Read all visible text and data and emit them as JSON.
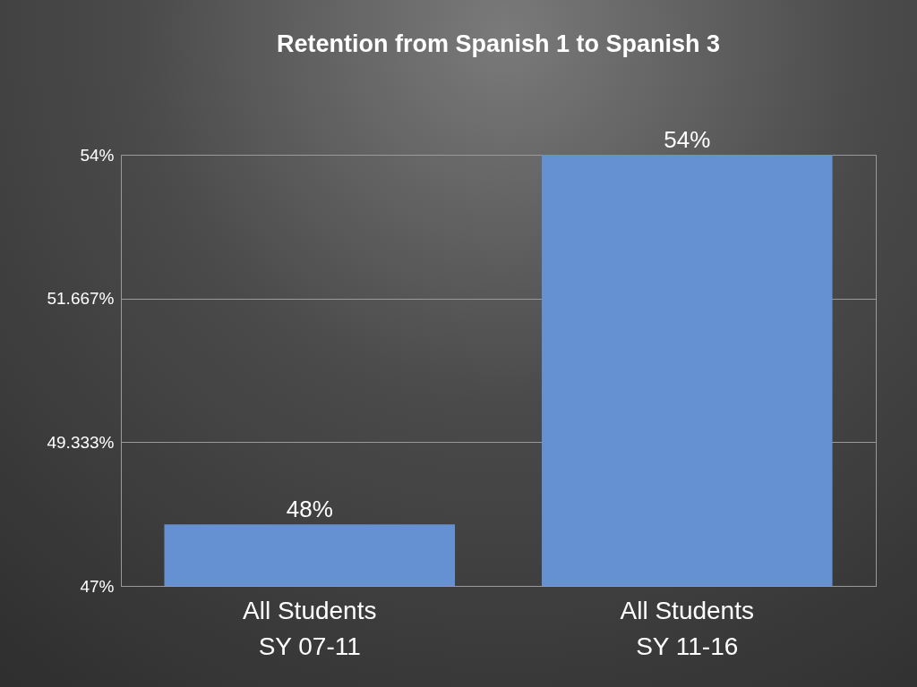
{
  "chart_data": {
    "type": "bar",
    "title": "Retention from Spanish 1 to Spanish 3",
    "categories": [
      "All Students\nSY 07-11",
      "All Students\nSY 11-16"
    ],
    "values": [
      48,
      54
    ],
    "color": "#6591d3",
    "value_labels": [
      "48%",
      "54%"
    ],
    "ylim": [
      47,
      54
    ],
    "yticks": [
      {
        "value": 47,
        "label": "47%"
      },
      {
        "value": 49.333,
        "label": "49.333%"
      },
      {
        "value": 51.667,
        "label": "51.667%"
      },
      {
        "value": 54,
        "label": "54%"
      }
    ],
    "grid": "y"
  }
}
